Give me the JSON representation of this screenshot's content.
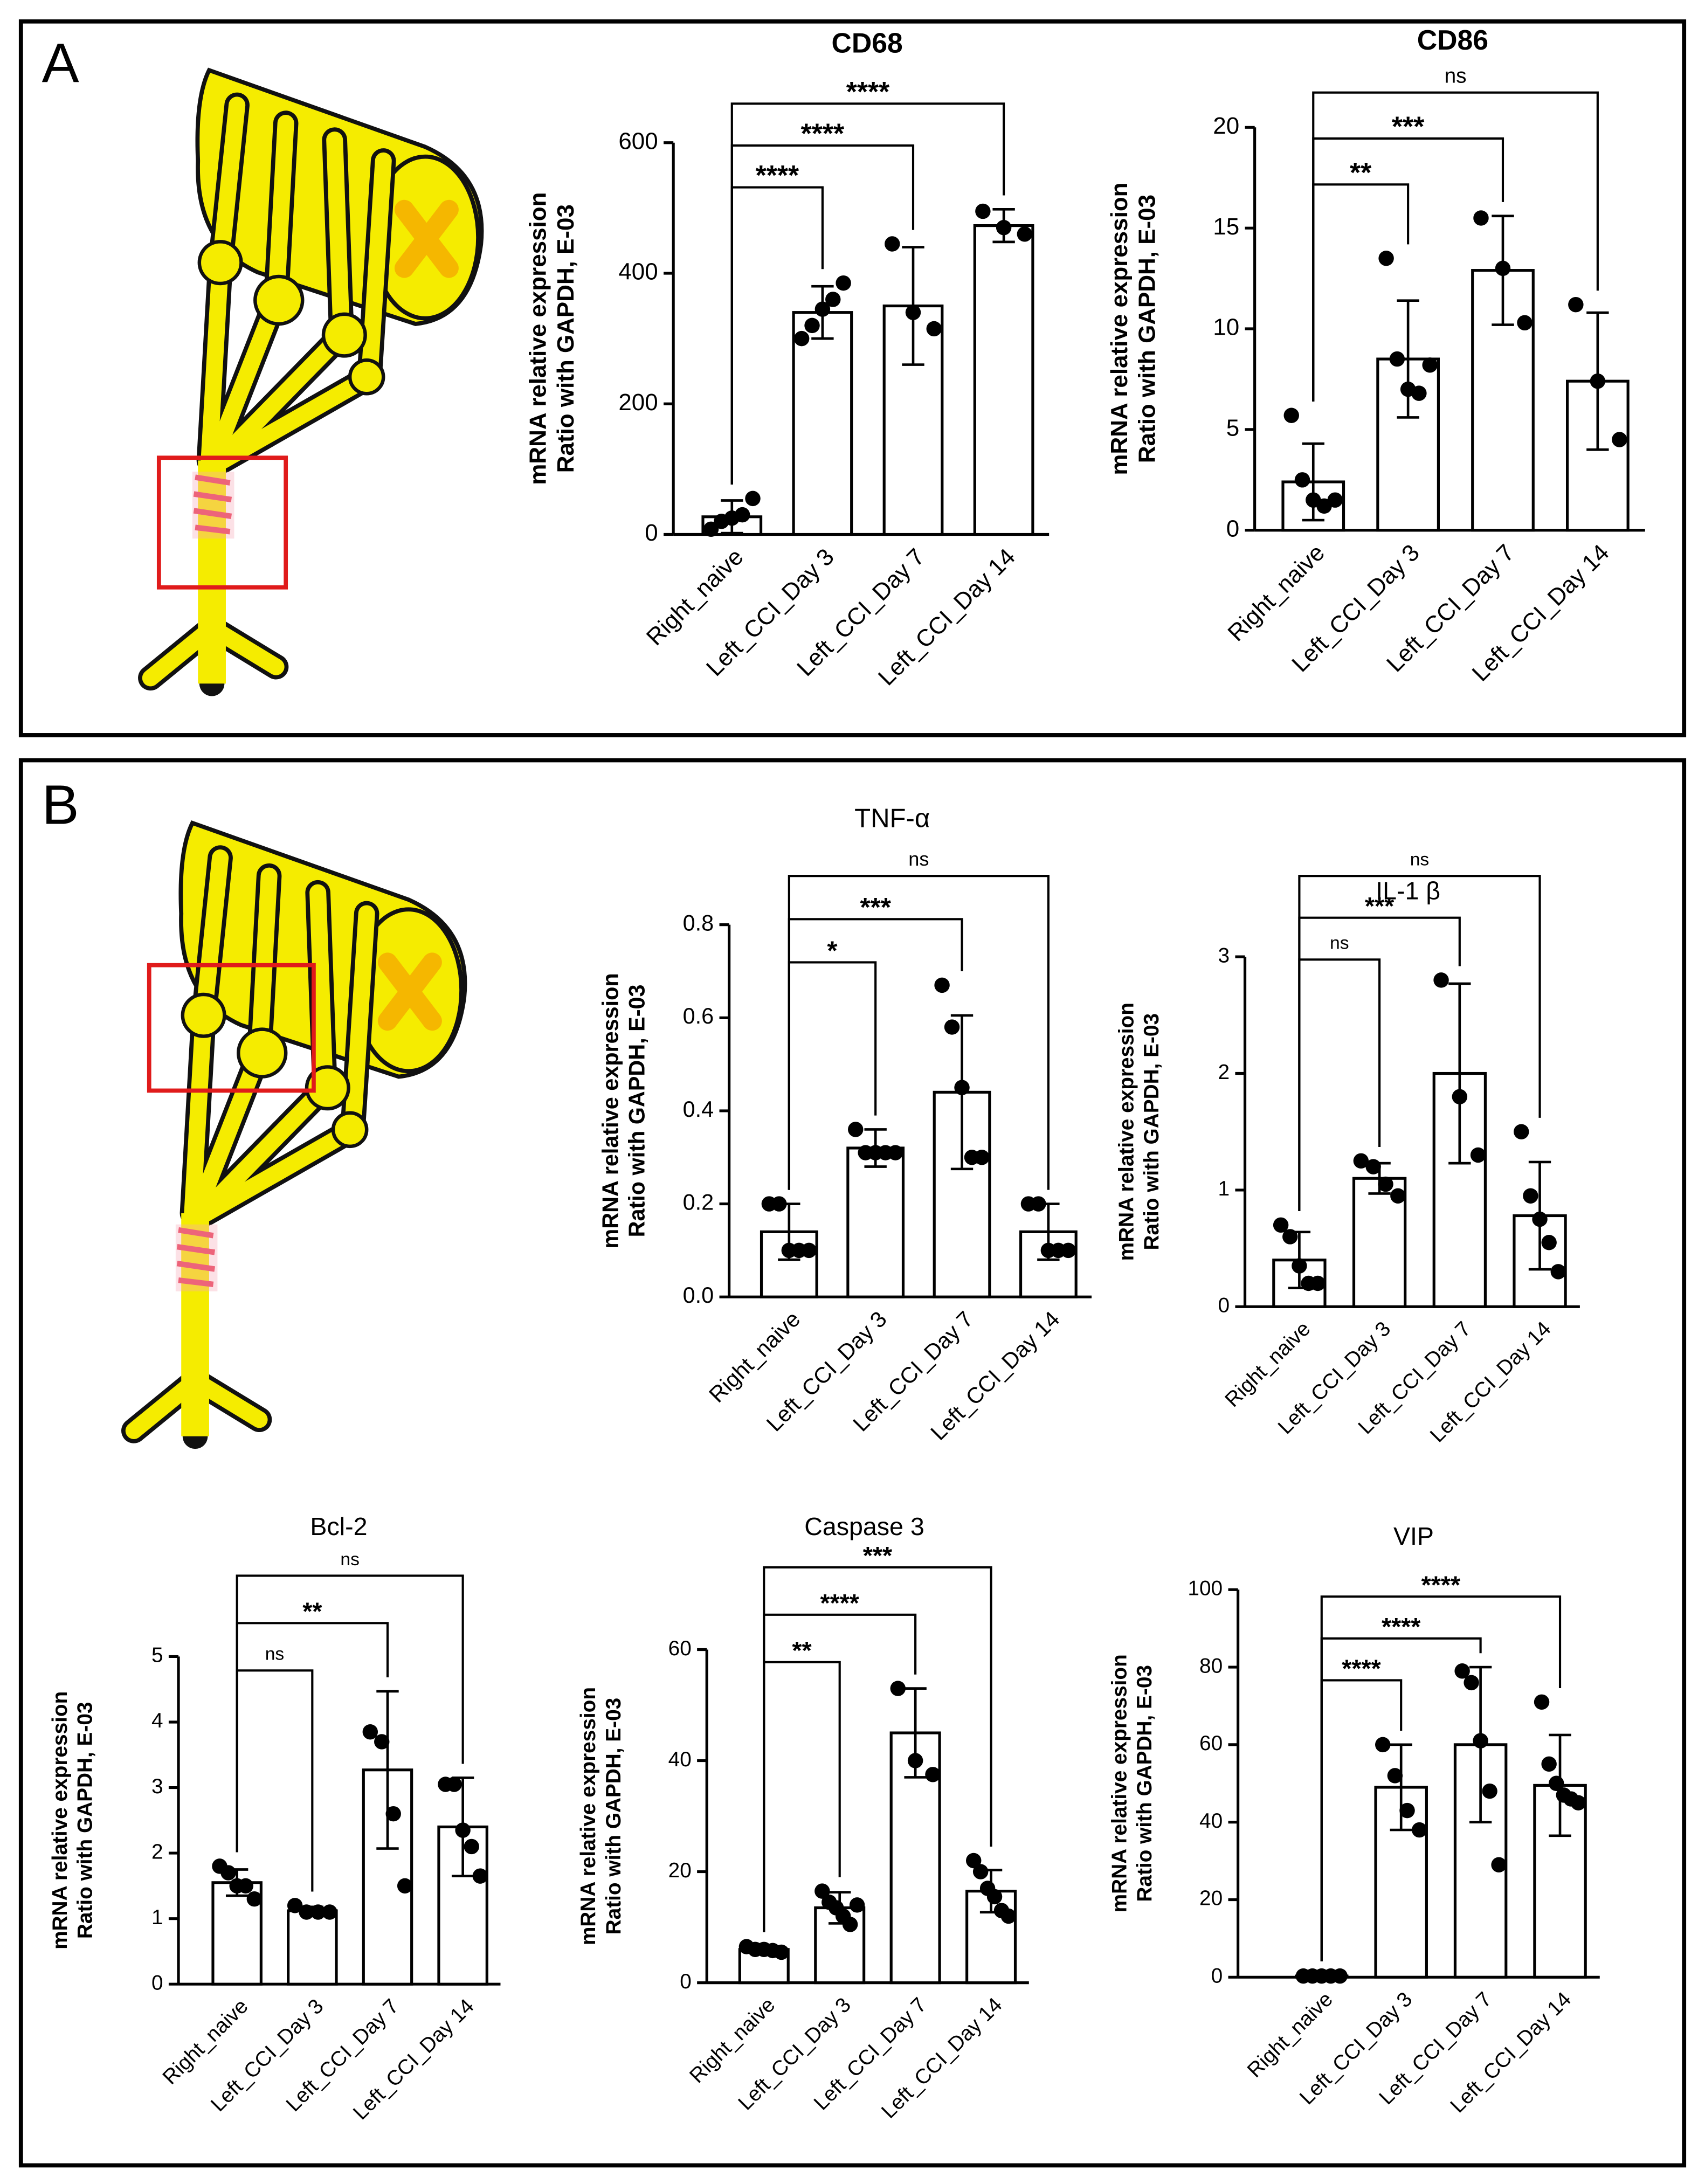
{
  "panels": [
    "A",
    "B"
  ],
  "chart_data": [
    {
      "type": "bar",
      "title": "CD68",
      "title_weight": "bold",
      "ylabel": [
        "mRNA  relative expression",
        "Ratio with GAPDH, E-03"
      ],
      "categories": [
        "Right_naive",
        "Left_CCI_Day 3",
        "Left_CCI_Day 7",
        "Left_CCI_Day 14"
      ],
      "values": [
        27,
        340,
        350,
        473
      ],
      "errors": [
        25,
        40,
        90,
        25
      ],
      "points": [
        [
          8,
          20,
          25,
          30,
          55
        ],
        [
          300,
          320,
          345,
          360,
          385
        ],
        [
          445,
          340,
          315
        ],
        [
          495,
          470,
          460
        ]
      ],
      "bar_color": "#ffffff",
      "edge_color": "#000000",
      "point_color": "#000000",
      "ylim": [
        0,
        600
      ],
      "yticks": [
        0,
        200,
        400,
        600
      ],
      "comparisons": [
        {
          "groups": [
            "Right_naive",
            "Left_CCI_Day 3"
          ],
          "label": "****"
        },
        {
          "groups": [
            "Right_naive",
            "Left_CCI_Day 7"
          ],
          "label": "****"
        },
        {
          "groups": [
            "Right_naive",
            "Left_CCI_Day 14"
          ],
          "label": "****"
        }
      ]
    },
    {
      "type": "bar",
      "title": "CD86",
      "title_weight": "bold",
      "ylabel": [
        "mRNA  relative expression",
        "Ratio with GAPDH, E-03"
      ],
      "categories": [
        "Right_naive",
        "Left_CCI_Day 3",
        "Left_CCI_Day 7",
        "Left_CCI_Day 14"
      ],
      "values": [
        2.4,
        8.5,
        12.9,
        7.4
      ],
      "errors": [
        1.9,
        2.9,
        2.7,
        3.4
      ],
      "points": [
        [
          5.7,
          2.5,
          1.5,
          1.2,
          1.5
        ],
        [
          13.5,
          8.5,
          7.0,
          6.8,
          8.2
        ],
        [
          15.5,
          13,
          10.3
        ],
        [
          11.2,
          7.4,
          4.5
        ]
      ],
      "bar_color": "#ffffff",
      "edge_color": "#000000",
      "point_color": "#000000",
      "ylim": [
        0,
        20
      ],
      "yticks": [
        0,
        5,
        10,
        15,
        20
      ],
      "comparisons": [
        {
          "groups": [
            "Right_naive",
            "Left_CCI_Day 3"
          ],
          "label": "**"
        },
        {
          "groups": [
            "Right_naive",
            "Left_CCI_Day 7"
          ],
          "label": "***"
        },
        {
          "groups": [
            "Right_naive",
            "Left_CCI_Day 14"
          ],
          "label": "ns"
        }
      ]
    },
    {
      "type": "bar",
      "title": "TNF-α",
      "title_weight": "normal",
      "ylabel": [
        "mRNA  relative expression",
        "Ratio with GAPDH, E-03"
      ],
      "categories": [
        "Right_naive",
        "Left_CCI_Day 3",
        "Left_CCI_Day 7",
        "Left_CCI_Day 14"
      ],
      "values": [
        0.14,
        0.32,
        0.44,
        0.14
      ],
      "errors": [
        0.06,
        0.04,
        0.165,
        0.06
      ],
      "points": [
        [
          0.2,
          0.2,
          0.1,
          0.1,
          0.1
        ],
        [
          0.36,
          0.31,
          0.31,
          0.31,
          0.31
        ],
        [
          0.67,
          0.58,
          0.45,
          0.3,
          0.3
        ],
        [
          0.2,
          0.2,
          0.1,
          0.1,
          0.1
        ]
      ],
      "bar_color": "#ffffff",
      "edge_color": "#000000",
      "point_color": "#000000",
      "ylim": [
        0,
        0.8
      ],
      "yticks": [
        {
          "value": 0,
          "label": "0.0"
        },
        0.2,
        0.4,
        0.6,
        0.8
      ],
      "comparisons": [
        {
          "groups": [
            "Right_naive",
            "Left_CCI_Day 3"
          ],
          "label": "*"
        },
        {
          "groups": [
            "Right_naive",
            "Left_CCI_Day 7"
          ],
          "label": "***"
        },
        {
          "groups": [
            "Right_naive",
            "Left_CCI_Day 14"
          ],
          "label": "ns"
        }
      ]
    },
    {
      "type": "bar",
      "title": "IL-1 β",
      "title_weight": "normal",
      "ylabel": [
        "mRNA  relative expression",
        "Ratio with GAPDH, E-03"
      ],
      "categories": [
        "Right_naive",
        "Left_CCI_Day 3",
        "Left_CCI_Day 7",
        "Left_CCI_Day 14"
      ],
      "values": [
        0.4,
        1.1,
        2.0,
        0.78
      ],
      "errors": [
        0.24,
        0.13,
        0.77,
        0.46
      ],
      "points": [
        [
          0.7,
          0.6,
          0.35,
          0.2,
          0.2
        ],
        [
          1.25,
          1.2,
          1.05,
          0.95
        ],
        [
          2.8,
          1.8,
          1.3
        ],
        [
          1.5,
          0.95,
          0.75,
          0.55,
          0.3
        ]
      ],
      "bar_color": "#ffffff",
      "edge_color": "#000000",
      "point_color": "#000000",
      "ylim": [
        0,
        3
      ],
      "yticks": [
        0,
        1,
        2,
        3
      ],
      "comparisons": [
        {
          "groups": [
            "Right_naive",
            "Left_CCI_Day 3"
          ],
          "label": "ns"
        },
        {
          "groups": [
            "Right_naive",
            "Left_CCI_Day 7"
          ],
          "label": "***"
        },
        {
          "groups": [
            "Right_naive",
            "Left_CCI_Day 14"
          ],
          "label": "ns"
        }
      ]
    },
    {
      "type": "bar",
      "title": "Bcl-2",
      "title_weight": "normal",
      "ylabel": [
        "mRNA  relative expression",
        "Ratio with GAPDH, E-03"
      ],
      "categories": [
        "Right_naive",
        "Left_CCI_Day 3",
        "Left_CCI_Day 7",
        "Left_CCI_Day 14"
      ],
      "values": [
        1.55,
        1.12,
        3.27,
        2.4
      ],
      "errors": [
        0.2,
        0.06,
        1.2,
        0.75
      ],
      "points": [
        [
          1.8,
          1.7,
          1.5,
          1.5,
          1.3
        ],
        [
          1.2,
          1.1,
          1.1,
          1.1
        ],
        [
          3.85,
          3.7,
          2.6,
          1.5
        ],
        [
          3.05,
          3.05,
          2.35,
          2.1,
          1.65
        ]
      ],
      "bar_color": "#ffffff",
      "edge_color": "#000000",
      "point_color": "#000000",
      "ylim": [
        0,
        5
      ],
      "yticks": [
        0,
        1,
        2,
        3,
        4,
        5
      ],
      "comparisons": [
        {
          "groups": [
            "Right_naive",
            "Left_CCI_Day 3"
          ],
          "label": "ns"
        },
        {
          "groups": [
            "Right_naive",
            "Left_CCI_Day 7"
          ],
          "label": "**"
        },
        {
          "groups": [
            "Right_naive",
            "Left_CCI_Day 14"
          ],
          "label": "ns"
        }
      ]
    },
    {
      "type": "bar",
      "title": "Caspase 3",
      "title_weight": "normal",
      "ylabel": [
        "mRNA  relative expression",
        "Ratio with GAPDH, E-03"
      ],
      "categories": [
        "Right_naive",
        "Left_CCI_Day 3",
        "Left_CCI_Day 7",
        "Left_CCI_Day 14"
      ],
      "values": [
        6,
        13.5,
        45,
        16.5
      ],
      "errors": [
        0.6,
        2.8,
        8,
        3.8
      ],
      "points": [
        [
          6.5,
          6,
          6,
          5.8,
          5.5
        ],
        [
          16.5,
          14.5,
          13.5,
          12,
          10.5,
          14
        ],
        [
          53,
          40,
          37.5
        ],
        [
          22,
          20,
          17,
          15.5,
          13,
          12
        ]
      ],
      "bar_color": "#ffffff",
      "edge_color": "#000000",
      "point_color": "#000000",
      "ylim": [
        0,
        60
      ],
      "yticks": [
        0,
        20,
        40,
        60
      ],
      "comparisons": [
        {
          "groups": [
            "Right_naive",
            "Left_CCI_Day 3"
          ],
          "label": "**"
        },
        {
          "groups": [
            "Right_naive",
            "Left_CCI_Day 7"
          ],
          "label": "****"
        },
        {
          "groups": [
            "Right_naive",
            "Left_CCI_Day 14"
          ],
          "label": "***"
        }
      ]
    },
    {
      "type": "bar",
      "title": "VIP",
      "title_weight": "normal",
      "ylabel": [
        "mRNA  relative expression",
        "Ratio with GAPDH, E-03"
      ],
      "categories": [
        "Right_naive",
        "Left_CCI_Day 3",
        "Left_CCI_Day 7",
        "Left_CCI_Day 14"
      ],
      "values": [
        0.3,
        49,
        60,
        49.5
      ],
      "errors": [
        0.2,
        11,
        20,
        13
      ],
      "points": [
        [
          0.3,
          0.3,
          0.3,
          0.3,
          0.3
        ],
        [
          60,
          52,
          43,
          38
        ],
        [
          79,
          76,
          61,
          48,
          29
        ],
        [
          71,
          55,
          50,
          47,
          46,
          45
        ]
      ],
      "bar_color": "#ffffff",
      "edge_color": "#000000",
      "point_color": "#000000",
      "ylim": [
        0,
        100
      ],
      "yticks": [
        0,
        20,
        40,
        60,
        80,
        100
      ],
      "comparisons": [
        {
          "groups": [
            "Right_naive",
            "Left_CCI_Day 3"
          ],
          "label": "****"
        },
        {
          "groups": [
            "Right_naive",
            "Left_CCI_Day 7"
          ],
          "label": "****"
        },
        {
          "groups": [
            "Right_naive",
            "Left_CCI_Day 14"
          ],
          "label": "****"
        }
      ]
    }
  ]
}
